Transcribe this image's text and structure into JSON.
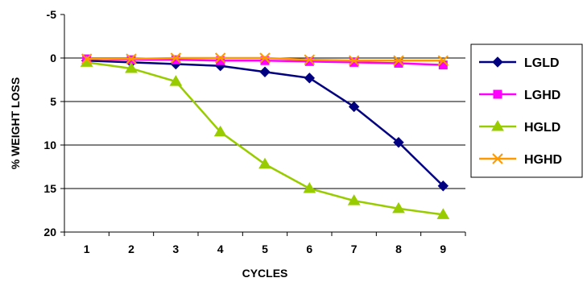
{
  "chart_data": {
    "type": "line",
    "title": "",
    "xlabel": "CYCLES",
    "ylabel": "% WEIGHT LOSS",
    "x": [
      1,
      2,
      3,
      4,
      5,
      6,
      7,
      8,
      9
    ],
    "ylim": [
      -5,
      20
    ],
    "y_inverted": true,
    "yticks": [
      -5,
      0,
      5,
      10,
      15,
      20
    ],
    "grid": "horizontal",
    "legend_position": "right",
    "series": [
      {
        "name": "LGLD",
        "color": "#000080",
        "marker": "diamond",
        "values": [
          0.3,
          0.5,
          0.7,
          0.9,
          1.6,
          2.3,
          5.6,
          9.7,
          14.7
        ]
      },
      {
        "name": "LGHD",
        "color": "#FF00FF",
        "marker": "square",
        "values": [
          0.1,
          0.2,
          0.2,
          0.3,
          0.3,
          0.4,
          0.5,
          0.6,
          0.8
        ]
      },
      {
        "name": "HGLD",
        "color": "#99CC00",
        "marker": "triangle",
        "values": [
          0.5,
          1.2,
          2.7,
          8.5,
          12.2,
          15.0,
          16.4,
          17.3,
          18.0
        ]
      },
      {
        "name": "HGHD",
        "color": "#FF9900",
        "marker": "x",
        "values": [
          0.1,
          0.1,
          0.0,
          0.0,
          0.0,
          0.2,
          0.3,
          0.3,
          0.3
        ]
      }
    ]
  }
}
